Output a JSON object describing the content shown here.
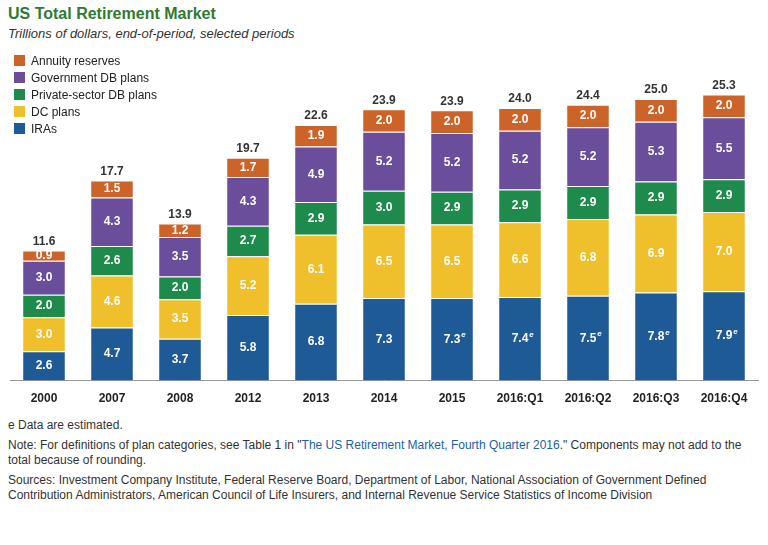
{
  "chart_data": {
    "type": "bar",
    "title": "US Total Retirement Market",
    "subtitle": "Trillions of dollars, end-of-period, selected periods",
    "categories": [
      "2000",
      "2007",
      "2008",
      "2012",
      "2013",
      "2014",
      "2015",
      "2016:Q1",
      "2016:Q2",
      "2016:Q3",
      "2016:Q4"
    ],
    "series": [
      {
        "name": "IRAs",
        "color": "#1d5a96",
        "values": [
          2.6,
          4.7,
          3.7,
          5.8,
          6.8,
          7.3,
          7.3,
          7.4,
          7.5,
          7.8,
          7.9
        ],
        "value_labels": [
          "2.6",
          "4.7",
          "3.7",
          "5.8",
          "6.8",
          "7.3",
          "7.3e",
          "7.4e",
          "7.5e",
          "7.8e",
          "7.9e"
        ]
      },
      {
        "name": "DC plans",
        "color": "#efbf2c",
        "values": [
          3.0,
          4.6,
          3.5,
          5.2,
          6.1,
          6.5,
          6.5,
          6.6,
          6.8,
          6.9,
          7.0
        ],
        "value_labels": [
          "3.0",
          "4.6",
          "3.5",
          "5.2",
          "6.1",
          "6.5",
          "6.5",
          "6.6",
          "6.8",
          "6.9",
          "7.0"
        ]
      },
      {
        "name": "Private-sector DB plans",
        "color": "#1e8a4c",
        "values": [
          2.0,
          2.6,
          2.0,
          2.7,
          2.9,
          3.0,
          2.9,
          2.9,
          2.9,
          2.9,
          2.9
        ],
        "value_labels": [
          "2.0",
          "2.6",
          "2.0",
          "2.7",
          "2.9",
          "3.0",
          "2.9",
          "2.9",
          "2.9",
          "2.9",
          "2.9"
        ]
      },
      {
        "name": "Government DB plans",
        "color": "#6a4e9b",
        "values": [
          3.0,
          4.3,
          3.5,
          4.3,
          4.9,
          5.2,
          5.2,
          5.2,
          5.2,
          5.3,
          5.5
        ],
        "value_labels": [
          "3.0",
          "4.3",
          "3.5",
          "4.3",
          "4.9",
          "5.2",
          "5.2",
          "5.2",
          "5.2",
          "5.3",
          "5.5"
        ]
      },
      {
        "name": "Annuity reserves",
        "color": "#cc6429",
        "values": [
          0.9,
          1.5,
          1.2,
          1.7,
          1.9,
          2.0,
          2.0,
          2.0,
          2.0,
          2.0,
          2.0
        ],
        "value_labels": [
          "0.9",
          "1.5",
          "1.2",
          "1.7",
          "1.9",
          "2.0",
          "2.0",
          "2.0",
          "2.0",
          "2.0",
          "2.0"
        ]
      }
    ],
    "totals": {
      "values": [
        11.6,
        17.7,
        13.9,
        19.7,
        22.6,
        23.9,
        23.9,
        24.0,
        24.4,
        25.0,
        25.3
      ],
      "value_labels": [
        "11.6",
        "17.7",
        "13.9",
        "19.7",
        "22.6",
        "23.9",
        "23.9",
        "24.0",
        "24.4",
        "25.0",
        "25.3"
      ]
    },
    "ylim": [
      0,
      28
    ],
    "stacked": true,
    "data_labels": true,
    "grid": false,
    "legend": "upper left",
    "tick_labels": "x",
    "footnotes": {
      "estimate": "e Data are estimated.",
      "note": [
        "Note: For definitions of plan categories, see Table 1 in \"",
        "The US Retirement Market, Fourth Quarter 2016",
        ".\" Components may not add to the total because of rounding."
      ],
      "sources": "Sources: Investment Company Institute, Federal Reserve Board, Department of Labor, National Association of Government Defined Contribution Administrators, American Council of Life Insurers, and Internal Revenue Service Statistics of Income Division"
    }
  }
}
